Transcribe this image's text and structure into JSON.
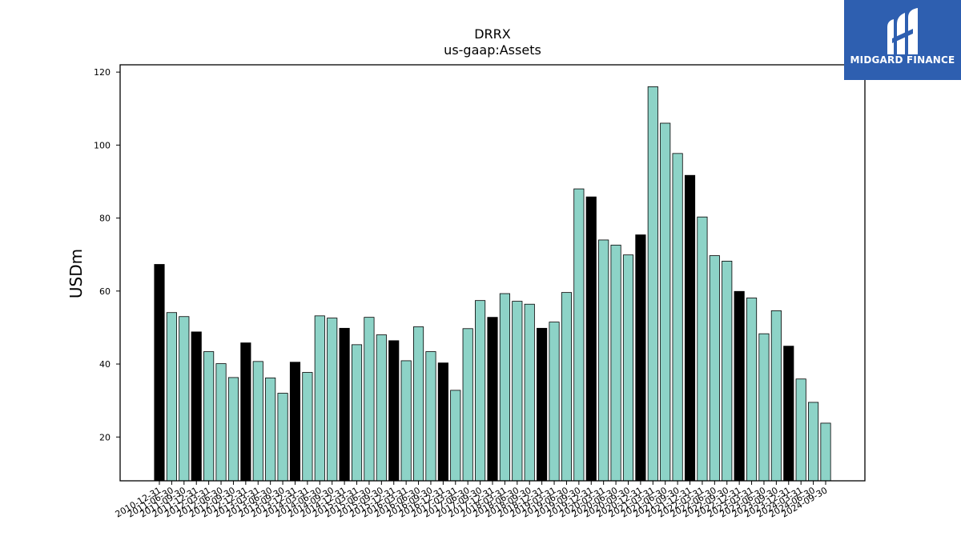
{
  "brand": {
    "name": "MIDGARD FINANCE",
    "icon": "midgard-logo-icon",
    "color": "#2e5fb0"
  },
  "chart_data": {
    "type": "bar",
    "title": "DRRX",
    "subtitle": "us-gaap:Assets",
    "ylabel": "USDm",
    "xlabel": "",
    "ylim": [
      8,
      122
    ],
    "yticks": [
      20,
      40,
      60,
      80,
      100,
      120
    ],
    "grid": false,
    "colors": {
      "quarter": "#8dd3c7",
      "year_end": "#000000",
      "edge": "#000000"
    },
    "categories": [
      "2010-12-31",
      "2011-06-30",
      "2011-09-30",
      "2011-12-31",
      "2012-03-31",
      "2012-06-30",
      "2012-09-30",
      "2012-12-31",
      "2013-03-31",
      "2013-06-30",
      "2013-09-30",
      "2013-12-31",
      "2014-03-31",
      "2014-06-30",
      "2014-09-30",
      "2014-12-31",
      "2015-03-31",
      "2015-06-30",
      "2015-09-30",
      "2015-12-31",
      "2016-03-31",
      "2016-06-30",
      "2016-09-30",
      "2016-12-31",
      "2017-03-31",
      "2017-06-30",
      "2017-09-30",
      "2017-12-31",
      "2018-03-31",
      "2018-06-30",
      "2018-09-30",
      "2018-12-31",
      "2019-03-31",
      "2019-06-30",
      "2019-09-30",
      "2019-12-31",
      "2020-03-31",
      "2020-06-30",
      "2020-09-30",
      "2020-12-31",
      "2021-03-31",
      "2021-06-30",
      "2021-09-30",
      "2021-12-31",
      "2022-03-31",
      "2022-06-30",
      "2022-09-30",
      "2022-12-31",
      "2023-03-31",
      "2023-06-30",
      "2023-09-30",
      "2023-12-31",
      "2024-03-31",
      "2024-06-30",
      "2024-09-30"
    ],
    "values": [
      67.3,
      54.1,
      53.0,
      48.8,
      43.4,
      40.1,
      36.3,
      45.8,
      40.7,
      36.2,
      32.0,
      40.5,
      37.7,
      53.2,
      52.6,
      49.8,
      45.3,
      52.8,
      48.0,
      46.4,
      40.9,
      50.2,
      43.4,
      40.3,
      32.8,
      49.7,
      57.4,
      52.8,
      59.3,
      57.2,
      56.4,
      49.8,
      51.5,
      59.6,
      88.0,
      85.8,
      74.0,
      72.6,
      69.9,
      75.4,
      116.0,
      106.0,
      97.7,
      91.7,
      80.3,
      69.7,
      68.2,
      59.9,
      58.1,
      48.3,
      54.6,
      44.9,
      35.9,
      29.5,
      23.8
    ]
  }
}
